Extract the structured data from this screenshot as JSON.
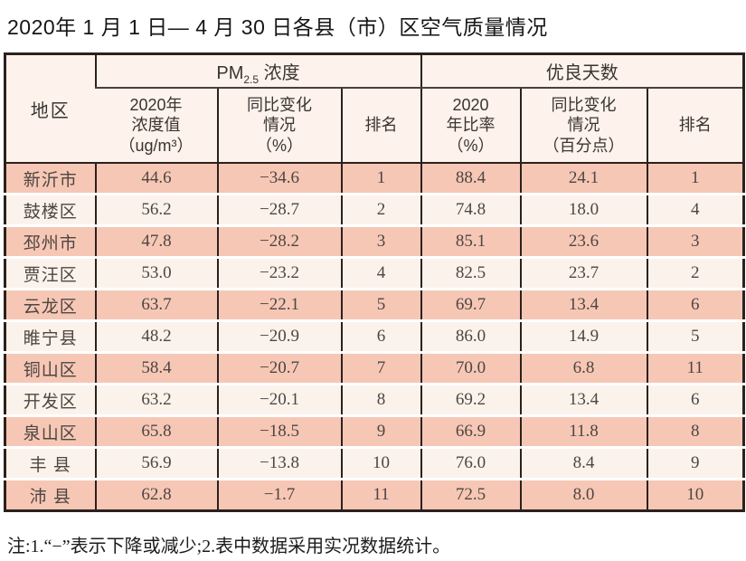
{
  "title": "2020年 1 月 1 日— 4 月 30 日各县（市）区空气质量情况",
  "footnote": "注:1.“−”表示下降或减少;2.表中数据采用实况数据统计。",
  "colors": {
    "row_salmon": "#f7c7b5",
    "row_light": "#fcf2ec",
    "header_bg": "#fdf2ec",
    "border_dark": "#2b211d"
  },
  "table": {
    "region_header": "地区",
    "group_pm": {
      "prefix": "PM",
      "sub": "2.5",
      "suffix": " 浓度"
    },
    "group_good": "优良天数",
    "sub_headers": {
      "pm_value": "2020年\n浓度值\n（ug/m³）",
      "pm_change": "同比变化\n情况\n（%）",
      "pm_rank": "排名",
      "good_rate": "2020\n年比率\n（%）",
      "good_change": "同比变化\n情况\n（百分点）",
      "good_rank": "排名"
    },
    "rows": [
      {
        "region": "新沂市",
        "pm_value": "44.6",
        "pm_change": "−34.6",
        "pm_rank": "1",
        "good_rate": "88.4",
        "good_change": "24.1",
        "good_rank": "1"
      },
      {
        "region": "鼓楼区",
        "pm_value": "56.2",
        "pm_change": "−28.7",
        "pm_rank": "2",
        "good_rate": "74.8",
        "good_change": "18.0",
        "good_rank": "4"
      },
      {
        "region": "邳州市",
        "pm_value": "47.8",
        "pm_change": "−28.2",
        "pm_rank": "3",
        "good_rate": "85.1",
        "good_change": "23.6",
        "good_rank": "3"
      },
      {
        "region": "贾汪区",
        "pm_value": "53.0",
        "pm_change": "−23.2",
        "pm_rank": "4",
        "good_rate": "82.5",
        "good_change": "23.7",
        "good_rank": "2"
      },
      {
        "region": "云龙区",
        "pm_value": "63.7",
        "pm_change": "−22.1",
        "pm_rank": "5",
        "good_rate": "69.7",
        "good_change": "13.4",
        "good_rank": "6"
      },
      {
        "region": "睢宁县",
        "pm_value": "48.2",
        "pm_change": "−20.9",
        "pm_rank": "6",
        "good_rate": "86.0",
        "good_change": "14.9",
        "good_rank": "5"
      },
      {
        "region": "铜山区",
        "pm_value": "58.4",
        "pm_change": "−20.7",
        "pm_rank": "7",
        "good_rate": "70.0",
        "good_change": "6.8",
        "good_rank": "11"
      },
      {
        "region": "开发区",
        "pm_value": "63.2",
        "pm_change": "−20.1",
        "pm_rank": "8",
        "good_rate": "69.2",
        "good_change": "13.4",
        "good_rank": "6"
      },
      {
        "region": "泉山区",
        "pm_value": "65.8",
        "pm_change": "−18.5",
        "pm_rank": "9",
        "good_rate": "66.9",
        "good_change": "11.8",
        "good_rank": "8"
      },
      {
        "region": "丰 县",
        "pm_value": "56.9",
        "pm_change": "−13.8",
        "pm_rank": "10",
        "good_rate": "76.0",
        "good_change": "8.4",
        "good_rank": "9"
      },
      {
        "region": "沛 县",
        "pm_value": "62.8",
        "pm_change": "−1.7",
        "pm_rank": "11",
        "good_rate": "72.5",
        "good_change": "8.0",
        "good_rank": "10"
      }
    ]
  }
}
